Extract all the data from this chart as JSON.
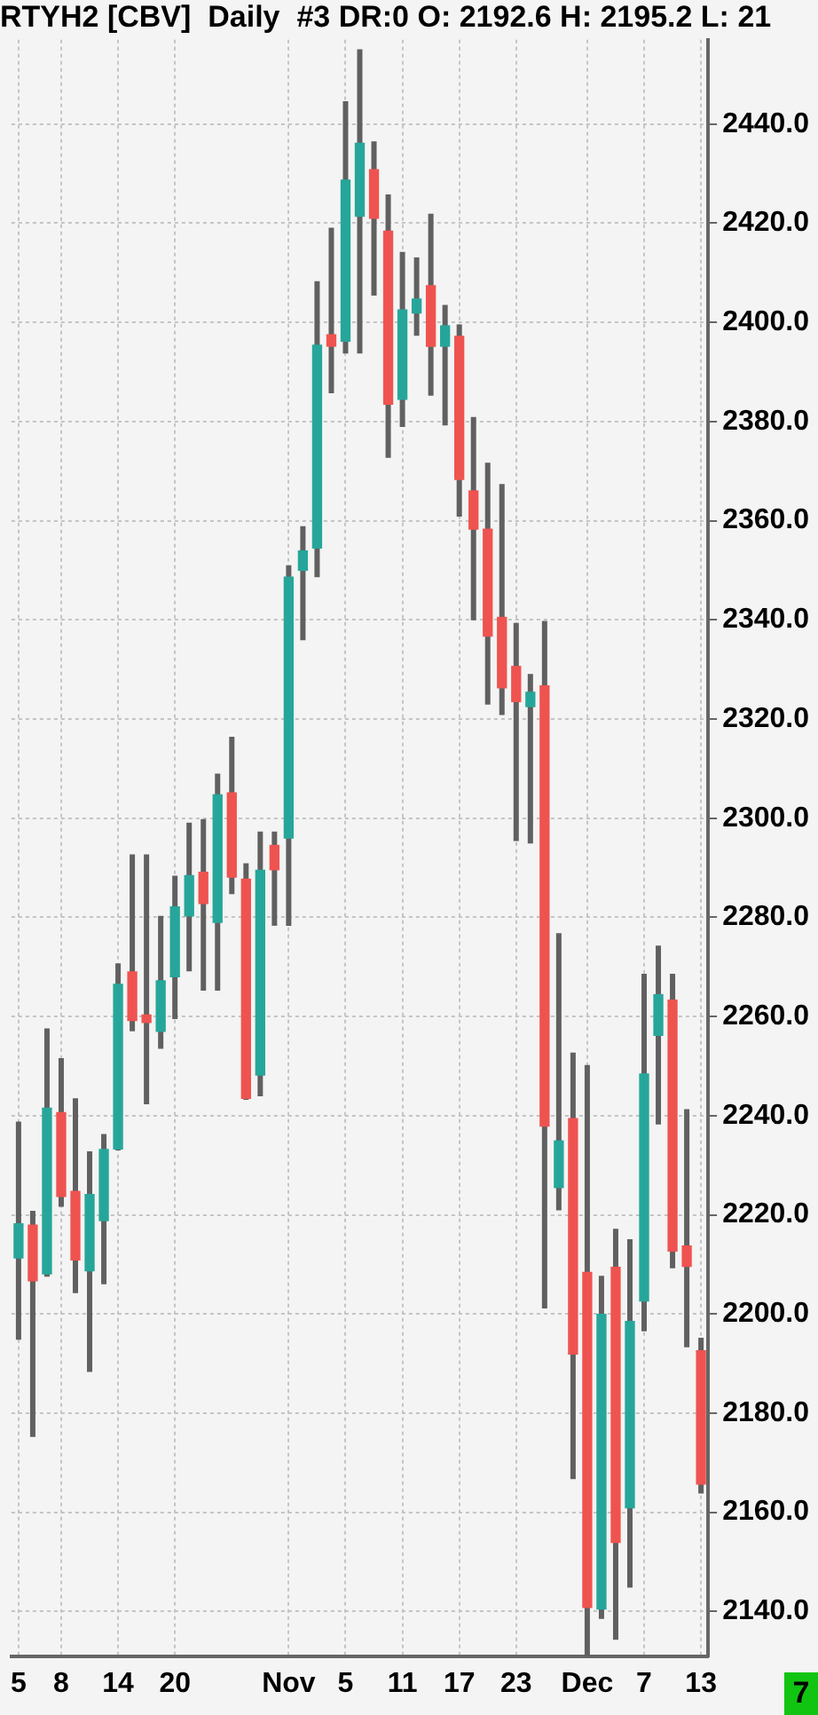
{
  "chart_data": {
    "type": "candlestick",
    "title": "RTYH2 [CBV]  Daily  #3 DR:0 O: 2192.6 H: 2195.2 L: 21",
    "categories": [
      "5",
      null,
      null,
      "8",
      null,
      null,
      null,
      "14",
      null,
      null,
      null,
      "20",
      null,
      null,
      null,
      null,
      null,
      null,
      null,
      "Nov",
      null,
      null,
      null,
      "5",
      null,
      null,
      null,
      "11",
      null,
      null,
      null,
      "17",
      null,
      null,
      null,
      "23",
      null,
      null,
      null,
      null,
      "Dec",
      null,
      null,
      null,
      "7",
      null,
      null,
      null,
      "13"
    ],
    "ohlc": [
      [
        2211.3,
        2238.8,
        2194.8,
        2218.2
      ],
      [
        2217.9,
        2220.8,
        2175.2,
        2206.7
      ],
      [
        2208.1,
        2257.6,
        2207.5,
        2241.5
      ],
      [
        2240.6,
        2251.6,
        2221.6,
        2223.7
      ],
      [
        2224.7,
        2243.5,
        2204.2,
        2210.9
      ],
      [
        2208.7,
        2232.8,
        2188.3,
        2224.1
      ],
      [
        2218.8,
        2236.3,
        2206.0,
        2233.2
      ],
      [
        2233.3,
        2270.7,
        2233.0,
        2266.5
      ],
      [
        2269.0,
        2292.7,
        2257.0,
        2259.2
      ],
      [
        2260.3,
        2292.7,
        2242.3,
        2258.8
      ],
      [
        2257.0,
        2280.3,
        2253.5,
        2267.2
      ],
      [
        2268.0,
        2288.4,
        2259.5,
        2282.1
      ],
      [
        2280.3,
        2299.1,
        2269.1,
        2288.4
      ],
      [
        2289.1,
        2299.8,
        2265.2,
        2282.8
      ],
      [
        2279.0,
        2309.0,
        2265.2,
        2304.7
      ],
      [
        2305.1,
        2316.4,
        2284.7,
        2288.1
      ],
      [
        2287.7,
        2290.9,
        2243.2,
        2243.5
      ],
      [
        2248.2,
        2297.3,
        2243.9,
        2289.5
      ],
      [
        2294.5,
        2297.3,
        2278.3,
        2289.6
      ],
      [
        2296.0,
        2351.0,
        2278.3,
        2348.6
      ],
      [
        2350.0,
        2358.9,
        2335.9,
        2353.9
      ],
      [
        2354.5,
        2408.3,
        2348.6,
        2395.4
      ],
      [
        2397.5,
        2419.1,
        2385.7,
        2395.2
      ],
      [
        2396.2,
        2444.6,
        2393.7,
        2428.7
      ],
      [
        2421.4,
        2455.1,
        2393.7,
        2436.1
      ],
      [
        2430.8,
        2436.5,
        2405.4,
        2421.0
      ],
      [
        2418.4,
        2425.8,
        2372.7,
        2383.5
      ],
      [
        2384.5,
        2414.2,
        2378.9,
        2402.5
      ],
      [
        2401.9,
        2413.1,
        2397.3,
        2404.7
      ],
      [
        2407.4,
        2421.9,
        2385.2,
        2395.2
      ],
      [
        2395.2,
        2403.5,
        2379.2,
        2399.3
      ],
      [
        2397.2,
        2399.6,
        2360.8,
        2368.3
      ],
      [
        2366.0,
        2380.9,
        2339.9,
        2358.3
      ],
      [
        2358.3,
        2371.7,
        2322.9,
        2336.7
      ],
      [
        2340.5,
        2367.4,
        2320.8,
        2326.3
      ],
      [
        2330.6,
        2339.4,
        2295.4,
        2323.5
      ],
      [
        2322.5,
        2329.1,
        2294.9,
        2325.4
      ],
      [
        2326.7,
        2339.8,
        2201.1,
        2237.9
      ],
      [
        2225.5,
        2276.8,
        2220.9,
        2234.9
      ],
      [
        2239.4,
        2252.7,
        2166.7,
        2191.9
      ],
      [
        2208.4,
        2250.2,
        2131,
        2140.8
      ],
      [
        2140.5,
        2207.7,
        2138.5,
        2199.9
      ],
      [
        2209.4,
        2217.2,
        2134.3,
        2153.9
      ],
      [
        2160.9,
        2215.1,
        2144.8,
        2198.5
      ],
      [
        2202.6,
        2268.6,
        2196.5,
        2248.4
      ],
      [
        2256.2,
        2274.3,
        2238.2,
        2264.4
      ],
      [
        2263.3,
        2268.6,
        2209.2,
        2212.7
      ],
      [
        2213.7,
        2241.3,
        2193.3,
        2209.6
      ],
      [
        2192.6,
        2195.2,
        2163.8,
        2165.7
      ]
    ],
    "ylim": [
      2131,
      2457
    ],
    "yticks": [
      {
        "value": 2140,
        "label": "2140.0"
      },
      {
        "value": 2160,
        "label": "2160.0"
      },
      {
        "value": 2180,
        "label": "2180.0"
      },
      {
        "value": 2200,
        "label": "2200.0"
      },
      {
        "value": 2220,
        "label": "2220.0"
      },
      {
        "value": 2240,
        "label": "2240.0"
      },
      {
        "value": 2260,
        "label": "2260.0"
      },
      {
        "value": 2280,
        "label": "2280.0"
      },
      {
        "value": 2300,
        "label": "2300.0"
      },
      {
        "value": 2320,
        "label": "2320.0"
      },
      {
        "value": 2340,
        "label": "2340.0"
      },
      {
        "value": 2360,
        "label": "2360.0"
      },
      {
        "value": 2380,
        "label": "2380.0"
      },
      {
        "value": 2400,
        "label": "2400.0"
      },
      {
        "value": 2420,
        "label": "2420.0"
      },
      {
        "value": 2440,
        "label": "2440.0"
      }
    ],
    "grid": true,
    "annotations": [
      "7"
    ]
  }
}
